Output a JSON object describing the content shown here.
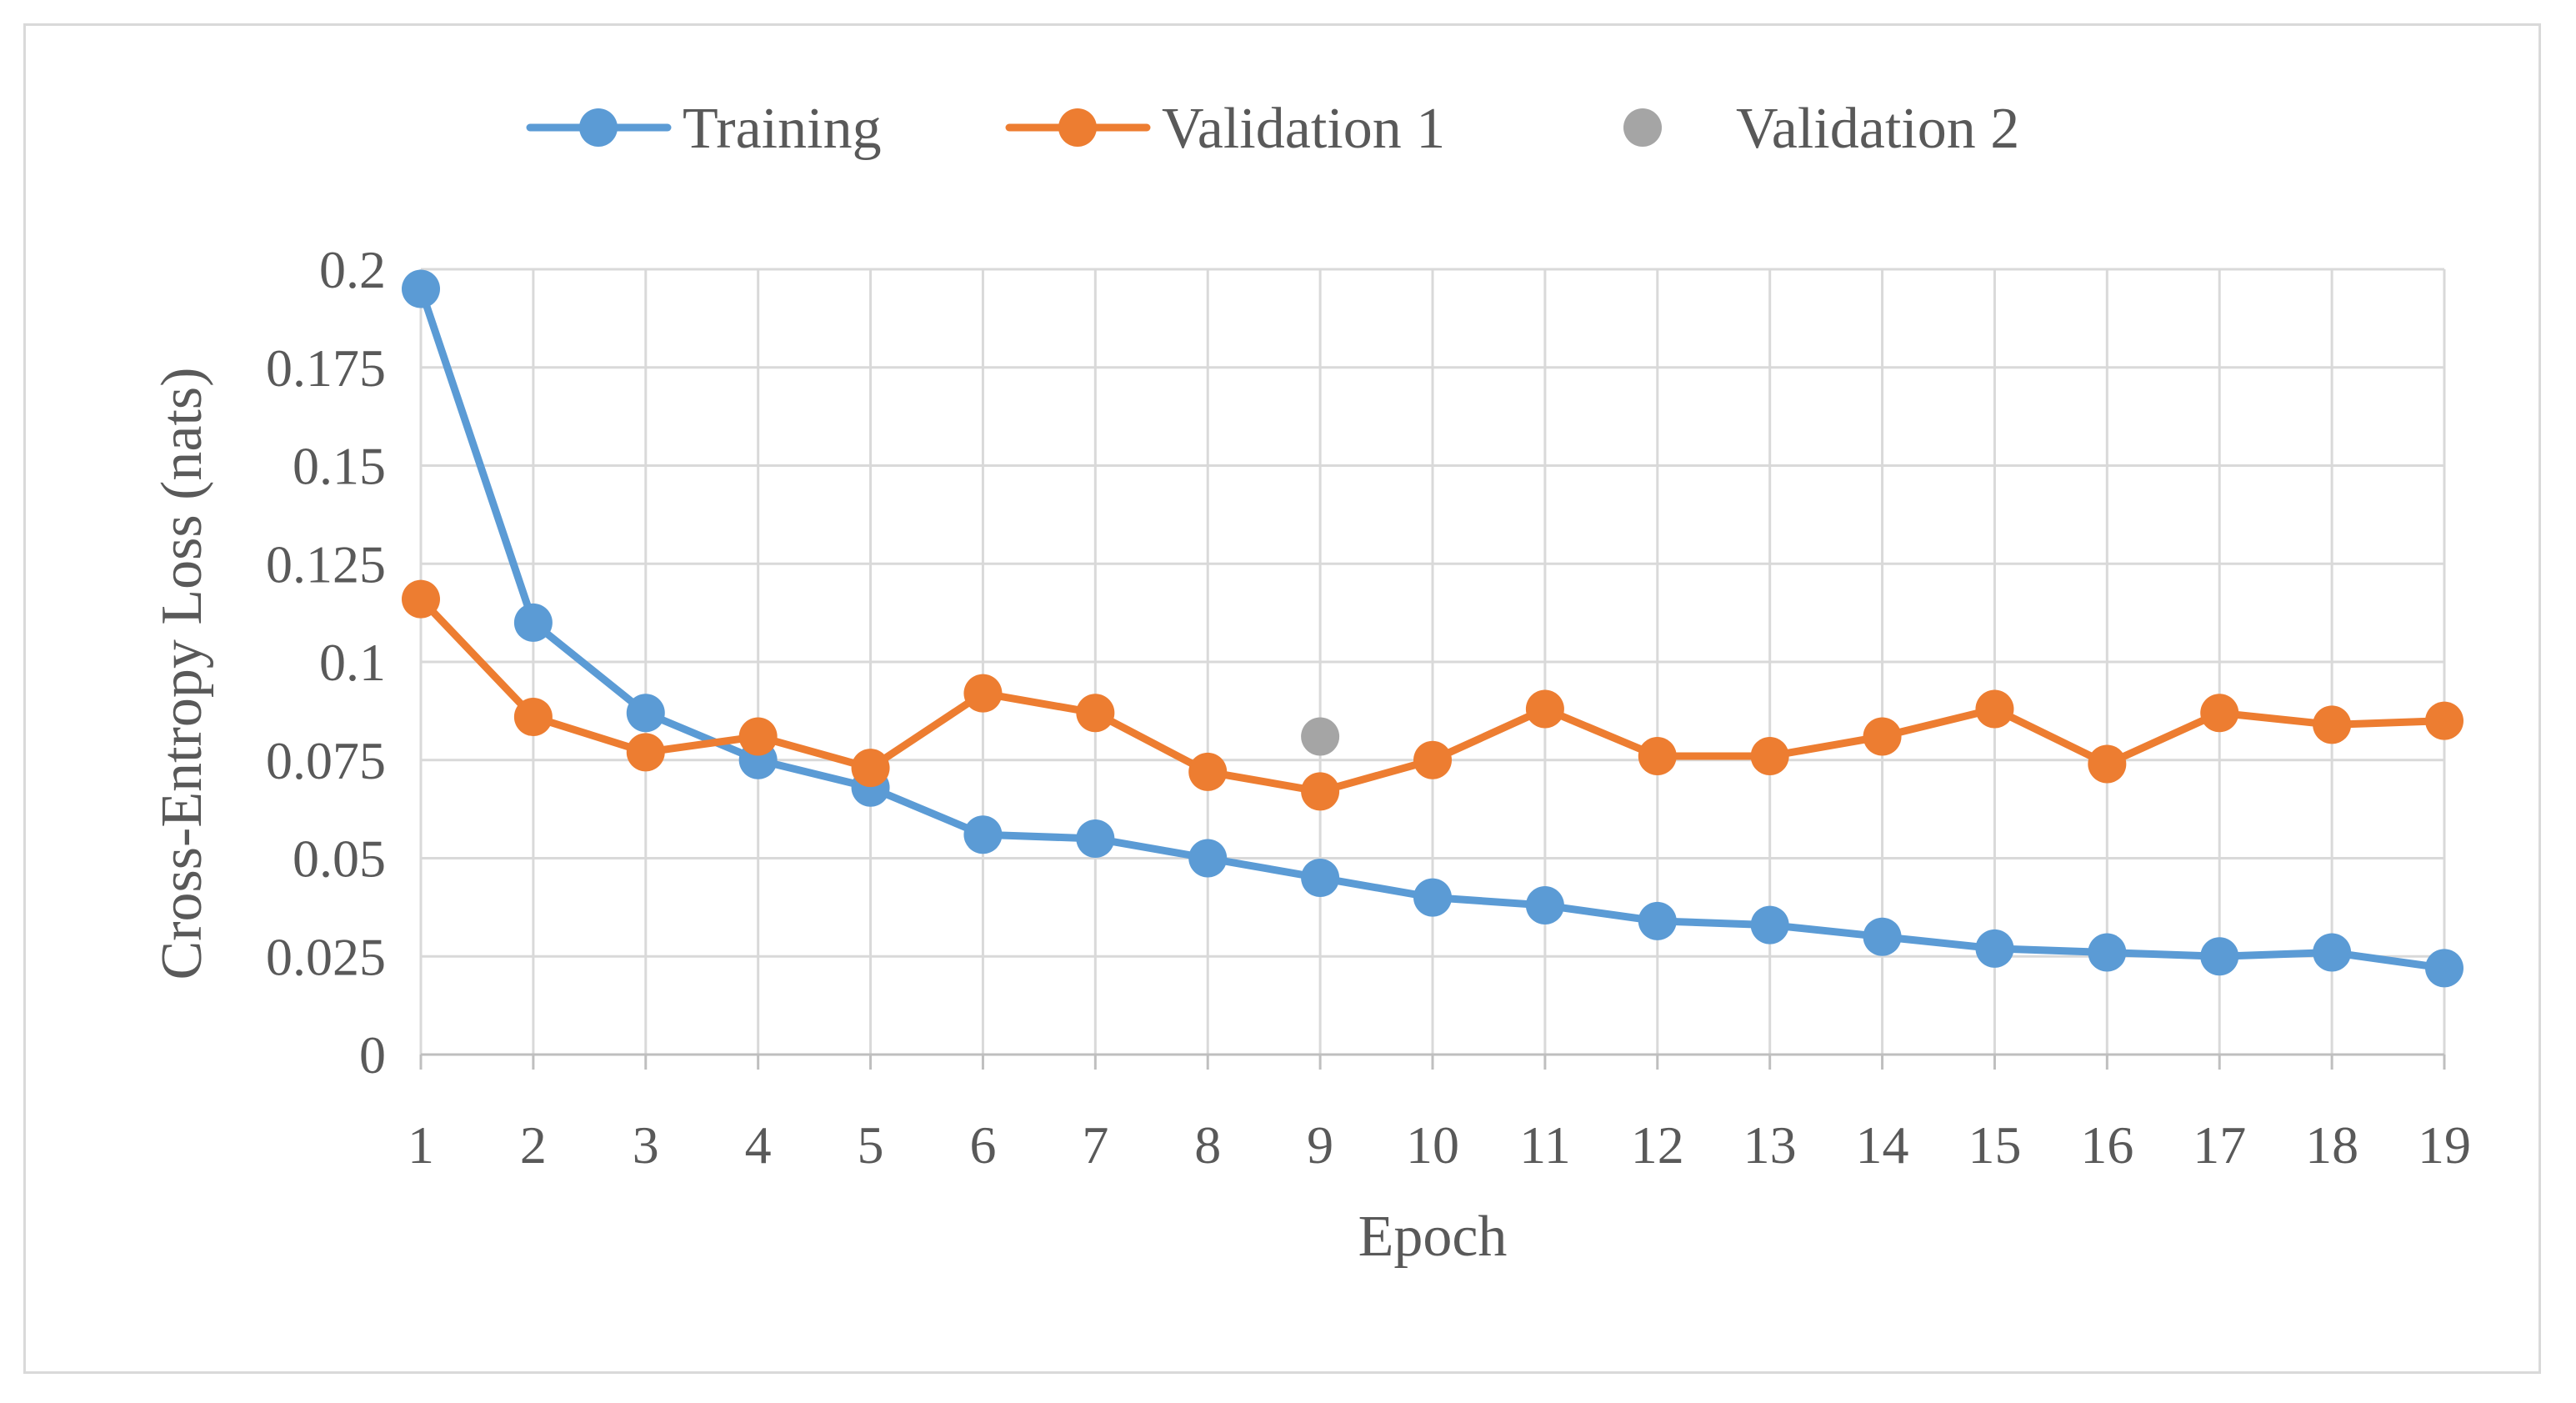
{
  "chart_data": {
    "type": "line",
    "title": "",
    "xlabel": "Epoch",
    "ylabel": "Cross-Entropy Loss (nats)",
    "categories": [
      "1",
      "2",
      "3",
      "4",
      "5",
      "6",
      "7",
      "8",
      "9",
      "10",
      "11",
      "12",
      "13",
      "14",
      "15",
      "16",
      "17",
      "18",
      "19"
    ],
    "x": [
      1,
      2,
      3,
      4,
      5,
      6,
      7,
      8,
      9,
      10,
      11,
      12,
      13,
      14,
      15,
      16,
      17,
      18,
      19
    ],
    "ylim": [
      0,
      0.2
    ],
    "yticks": [
      0,
      0.025,
      0.05,
      0.075,
      0.1,
      0.125,
      0.15,
      0.175,
      0.2
    ],
    "ytick_labels": [
      "0",
      "0.025",
      "0.05",
      "0.075",
      "0.1",
      "0.125",
      "0.15",
      "0.175",
      "0.2"
    ],
    "grid": true,
    "legend_position": "top",
    "series": [
      {
        "name": "Training",
        "color": "#5B9BD5",
        "values": [
          0.195,
          0.11,
          0.087,
          0.075,
          0.068,
          0.056,
          0.055,
          0.05,
          0.045,
          0.04,
          0.038,
          0.034,
          0.033,
          0.03,
          0.027,
          0.026,
          0.025,
          0.026,
          0.022
        ]
      },
      {
        "name": "Validation 1",
        "color": "#ED7D31",
        "values": [
          0.116,
          0.086,
          0.077,
          0.081,
          0.073,
          0.092,
          0.087,
          0.072,
          0.067,
          0.075,
          0.088,
          0.076,
          0.076,
          0.081,
          0.088,
          0.074,
          0.087,
          0.084,
          0.085
        ]
      },
      {
        "name": "Validation 2",
        "color": "#A5A5A5",
        "points": [
          {
            "x": 9,
            "y": 0.081
          }
        ]
      }
    ]
  }
}
